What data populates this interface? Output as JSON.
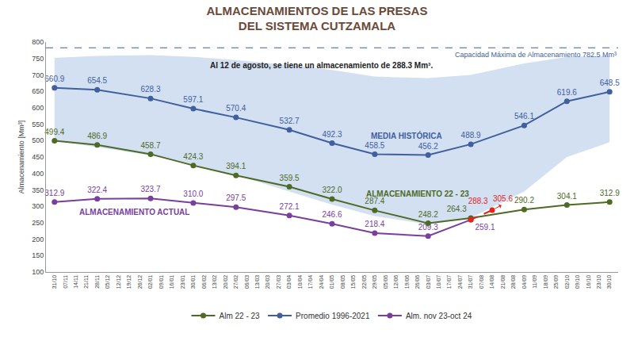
{
  "chart_data": {
    "type": "line",
    "title": "ALMACENAMIENTOS DE LAS PRESAS\nDEL SISTEMA CUTZAMALA",
    "y_label": "Almacenamiento [Mm³]",
    "note": "Al 12 de agosto, se tiene un almacenamiento de 288.3 Mm³.",
    "categories": [
      "31/10",
      "07/11",
      "14/11",
      "21/11",
      "28/11",
      "05/12",
      "12/12",
      "19/12",
      "26/12",
      "02/01",
      "09/01",
      "16/01",
      "23/01",
      "30/01",
      "06/02",
      "13/02",
      "20/02",
      "27/02",
      "06/03",
      "13/03",
      "20/03",
      "27/03",
      "03/04",
      "10/04",
      "17/04",
      "24/04",
      "01/05",
      "08/05",
      "15/05",
      "22/05",
      "29/05",
      "05/06",
      "12/06",
      "19/06",
      "26/06",
      "03/07",
      "10/07",
      "17/07",
      "24/07",
      "31/07",
      "07/08",
      "14/08",
      "21/08",
      "28/08",
      "04/09",
      "11/09",
      "18/09",
      "25/09",
      "02/10",
      "09/10",
      "16/10",
      "23/10",
      "30/10"
    ],
    "ylim": [
      100,
      800
    ],
    "yticks": [
      100,
      150,
      200,
      250,
      300,
      350,
      400,
      450,
      500,
      550,
      600,
      650,
      700,
      750,
      800
    ],
    "grid": false,
    "legend": "bottom",
    "data_labels": true,
    "series": [
      {
        "name": "Alm. nov 23-oct 24",
        "label": "ALMACENAMIENTO ACTUAL",
        "color": "#7a3e9d",
        "marker": "circle",
        "line_style": "solid",
        "values": [
          312.9,
          null,
          null,
          null,
          322.4,
          null,
          null,
          null,
          null,
          323.7,
          null,
          null,
          null,
          310.0,
          null,
          null,
          null,
          297.5,
          null,
          null,
          null,
          null,
          272.1,
          null,
          null,
          null,
          246.6,
          null,
          null,
          null,
          218.4,
          null,
          null,
          null,
          null,
          209.3,
          null,
          null,
          null,
          259.1,
          null,
          null,
          null,
          null,
          null,
          null,
          null,
          null,
          null,
          null,
          null,
          null,
          null
        ],
        "value_labels": [
          "312.9",
          null,
          null,
          null,
          "322.4",
          null,
          null,
          null,
          null,
          "323.7",
          null,
          null,
          null,
          "310.0",
          null,
          null,
          null,
          "297.5",
          null,
          null,
          null,
          null,
          "272.1",
          null,
          null,
          null,
          "246.6",
          null,
          null,
          null,
          "218.4",
          null,
          null,
          null,
          null,
          "209.3",
          null,
          null,
          null,
          "259.1",
          null,
          null,
          null,
          null,
          null,
          null,
          null,
          null,
          null,
          null,
          null,
          null,
          null
        ]
      },
      {
        "name": "Promedio 1996-2021",
        "label": "MEDIA HISTÓRICA",
        "color": "#3f5f9e",
        "marker": "circle",
        "line_style": "solid",
        "values": [
          660.9,
          null,
          null,
          null,
          654.5,
          null,
          null,
          null,
          null,
          628.3,
          null,
          null,
          null,
          597.1,
          null,
          null,
          null,
          570.4,
          null,
          null,
          null,
          null,
          532.7,
          null,
          null,
          null,
          492.3,
          null,
          null,
          null,
          458.5,
          null,
          null,
          null,
          null,
          456.2,
          null,
          null,
          null,
          488.9,
          null,
          null,
          null,
          null,
          546.1,
          null,
          null,
          null,
          619.6,
          null,
          null,
          null,
          648.5
        ],
        "value_labels": [
          "660.9",
          null,
          null,
          null,
          "654.5",
          null,
          null,
          null,
          null,
          "628.3",
          null,
          null,
          null,
          "597.1",
          null,
          null,
          null,
          "570.4",
          null,
          null,
          null,
          null,
          "532.7",
          null,
          null,
          null,
          "492.3",
          null,
          null,
          null,
          "458.5",
          null,
          null,
          null,
          null,
          "456.2",
          null,
          null,
          null,
          "488.9",
          null,
          null,
          null,
          null,
          "546.1",
          null,
          null,
          null,
          "619.6",
          null,
          null,
          null,
          "648.5"
        ]
      },
      {
        "name": "Alm 22 - 23",
        "label": "ALMACENAMIENTO 22 - 23",
        "color": "#4d6b25",
        "marker": "circle",
        "line_style": "solid",
        "values": [
          499.4,
          null,
          null,
          null,
          486.9,
          null,
          null,
          null,
          null,
          458.7,
          null,
          null,
          null,
          424.3,
          null,
          null,
          null,
          394.1,
          null,
          null,
          null,
          null,
          359.5,
          null,
          null,
          null,
          322.0,
          null,
          null,
          null,
          287.4,
          null,
          null,
          null,
          null,
          248.2,
          null,
          null,
          null,
          264.3,
          null,
          null,
          null,
          null,
          290.2,
          null,
          null,
          null,
          304.1,
          null,
          null,
          null,
          312.9
        ],
        "value_labels": [
          "499.4",
          null,
          null,
          null,
          "486.9",
          null,
          null,
          null,
          null,
          "458.7",
          null,
          null,
          null,
          "424.3",
          null,
          null,
          null,
          "394.1",
          null,
          null,
          null,
          null,
          "359.5",
          null,
          null,
          null,
          "322.0",
          null,
          null,
          null,
          "287.4",
          null,
          null,
          null,
          null,
          "248.2",
          null,
          null,
          null,
          "264.3",
          null,
          null,
          null,
          null,
          "290.2",
          null,
          null,
          null,
          "304.1",
          null,
          null,
          null,
          "312.9"
        ]
      }
    ],
    "latest": {
      "color": "#e3261c",
      "marker": "circle",
      "line_style": "dashed",
      "values": [
        null,
        null,
        null,
        null,
        null,
        null,
        null,
        null,
        null,
        null,
        null,
        null,
        null,
        null,
        null,
        null,
        null,
        null,
        null,
        null,
        null,
        null,
        null,
        null,
        null,
        null,
        null,
        null,
        null,
        null,
        null,
        null,
        null,
        null,
        null,
        null,
        null,
        null,
        null,
        259.1,
        null,
        288.3,
        null,
        null,
        null,
        null,
        null,
        null,
        null,
        null,
        null,
        null,
        null
      ]
    },
    "arrow_label": {
      "text": "305.6",
      "value": 305.6,
      "category": "21/08",
      "color": "#e3261c"
    },
    "band": {
      "color": "#d3e0f2",
      "lower": [
        500,
        null,
        null,
        null,
        480,
        null,
        null,
        null,
        null,
        455,
        null,
        null,
        null,
        425,
        null,
        null,
        null,
        395,
        null,
        null,
        null,
        null,
        345,
        null,
        null,
        null,
        305,
        null,
        null,
        null,
        270,
        null,
        null,
        null,
        null,
        245,
        null,
        null,
        null,
        265,
        null,
        null,
        null,
        null,
        345,
        null,
        null,
        null,
        450,
        null,
        null,
        null,
        495
      ],
      "upper": [
        752,
        null,
        null,
        null,
        758,
        null,
        null,
        null,
        null,
        760,
        null,
        null,
        null,
        755,
        null,
        null,
        null,
        745,
        null,
        null,
        null,
        null,
        730,
        null,
        null,
        null,
        715,
        null,
        null,
        null,
        695,
        null,
        null,
        null,
        null,
        690,
        null,
        null,
        null,
        700,
        null,
        null,
        null,
        null,
        735,
        null,
        null,
        null,
        755,
        null,
        null,
        null,
        758
      ]
    },
    "capacity": {
      "value": 782.5,
      "label": "Capacidad Máxima de Almacenamiento 782.5 Mm³",
      "color": "#3f5f9e",
      "line_style": "dashed"
    }
  }
}
